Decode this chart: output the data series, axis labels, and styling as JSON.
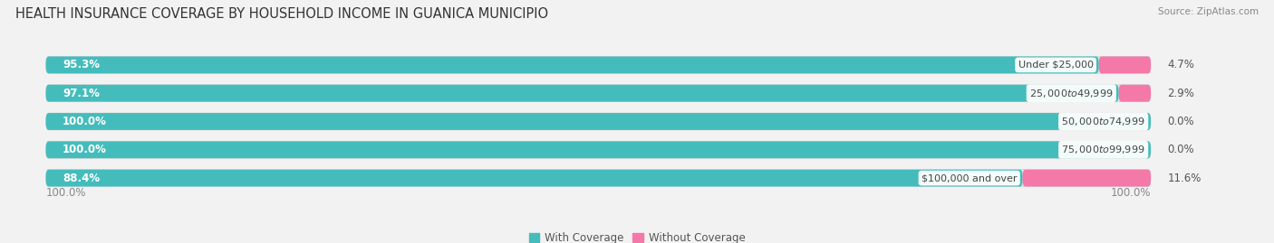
{
  "title": "HEALTH INSURANCE COVERAGE BY HOUSEHOLD INCOME IN GUANICA MUNICIPIO",
  "source": "Source: ZipAtlas.com",
  "categories": [
    "Under $25,000",
    "$25,000 to $49,999",
    "$50,000 to $74,999",
    "$75,000 to $99,999",
    "$100,000 and over"
  ],
  "with_coverage": [
    95.3,
    97.1,
    100.0,
    100.0,
    88.4
  ],
  "without_coverage": [
    4.7,
    2.9,
    0.0,
    0.0,
    11.6
  ],
  "color_coverage": "#45BCBC",
  "color_without": "#F478A8",
  "background_color": "#F2F2F2",
  "bar_bg_color": "#E2E2E2",
  "bar_height": 0.6,
  "legend_labels": [
    "With Coverage",
    "Without Coverage"
  ],
  "title_fontsize": 10.5,
  "label_fontsize": 8.5,
  "tick_fontsize": 8.5
}
